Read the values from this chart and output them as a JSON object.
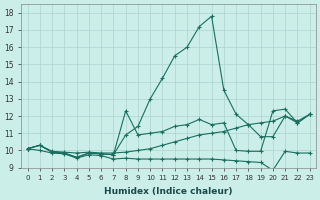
{
  "xlabel": "Humidex (Indice chaleur)",
  "bg_color": "#cceee8",
  "grid_color": "#aad4ce",
  "line_color": "#1a6e60",
  "xlim": [
    -0.5,
    23.5
  ],
  "ylim": [
    9,
    18.5
  ],
  "xticks": [
    0,
    1,
    2,
    3,
    4,
    5,
    6,
    7,
    8,
    9,
    10,
    11,
    12,
    13,
    14,
    15,
    16,
    17,
    18,
    19,
    20,
    21,
    22,
    23
  ],
  "yticks": [
    9,
    10,
    11,
    12,
    13,
    14,
    15,
    16,
    17,
    18
  ],
  "line1_x": [
    0,
    1,
    2,
    3,
    4,
    5,
    6,
    7,
    8,
    9,
    10,
    11,
    12,
    13,
    14,
    15,
    16,
    17,
    18,
    19,
    20,
    21,
    22,
    23
  ],
  "line1_y": [
    10.1,
    10.3,
    9.9,
    9.85,
    9.6,
    9.85,
    9.8,
    9.75,
    10.9,
    11.4,
    13.0,
    14.2,
    15.5,
    16.0,
    17.2,
    17.8,
    13.5,
    12.1,
    11.5,
    10.8,
    10.8,
    12.0,
    11.6,
    12.1
  ],
  "line2_x": [
    0,
    1,
    2,
    3,
    4,
    5,
    6,
    7,
    8,
    9,
    10,
    11,
    12,
    13,
    14,
    15,
    16,
    17,
    18,
    19,
    20,
    21,
    22,
    23
  ],
  "line2_y": [
    10.1,
    10.3,
    9.95,
    9.9,
    9.85,
    9.9,
    9.85,
    9.85,
    9.9,
    10.0,
    10.1,
    10.3,
    10.5,
    10.7,
    10.9,
    11.0,
    11.1,
    11.3,
    11.5,
    11.6,
    11.7,
    12.0,
    11.7,
    12.1
  ],
  "line3_x": [
    0,
    1,
    2,
    3,
    4,
    5,
    6,
    7,
    8,
    9,
    10,
    11,
    12,
    13,
    14,
    15,
    16,
    17,
    18,
    19,
    20,
    21,
    22,
    23
  ],
  "line3_y": [
    10.1,
    10.0,
    9.85,
    9.8,
    9.55,
    9.75,
    9.7,
    9.5,
    9.55,
    9.5,
    9.5,
    9.5,
    9.5,
    9.5,
    9.5,
    9.5,
    9.45,
    9.4,
    9.35,
    9.3,
    8.85,
    9.95,
    9.85,
    9.85
  ],
  "line4_x": [
    0,
    1,
    2,
    3,
    4,
    5,
    6,
    7,
    8,
    9,
    10,
    11,
    12,
    13,
    14,
    15,
    16,
    17,
    18,
    19,
    20,
    21,
    22,
    23
  ],
  "line4_y": [
    10.1,
    10.3,
    9.9,
    9.85,
    9.6,
    9.85,
    9.8,
    9.75,
    12.3,
    10.9,
    11.0,
    11.1,
    11.4,
    11.5,
    11.8,
    11.5,
    11.6,
    10.0,
    9.95,
    9.95,
    12.3,
    12.4,
    11.6,
    12.1
  ]
}
